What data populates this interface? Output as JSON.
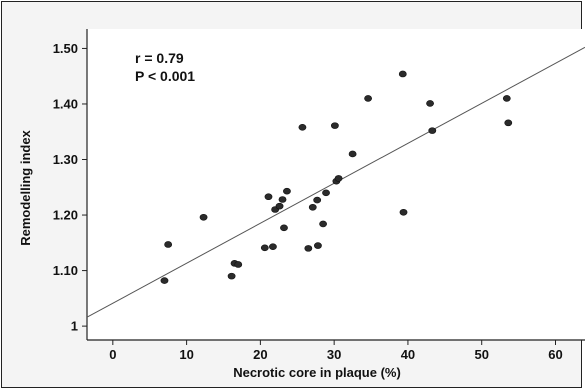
{
  "chart_data": {
    "type": "scatter",
    "xlabel": "Necrotic core in plaque (%)",
    "ylabel": "Remodelling index",
    "xlim": [
      -3.5,
      64
    ],
    "ylim": [
      0.975,
      1.535
    ],
    "x_ticks": [
      0,
      10,
      20,
      30,
      40,
      50,
      60
    ],
    "y_ticks": [
      1.0,
      1.1,
      1.2,
      1.3,
      1.4,
      1.5
    ],
    "y_tick_labels": [
      "1",
      "1.10",
      "1.20",
      "1.30",
      "1.40",
      "1.50"
    ],
    "annotations": [
      "r = 0.79",
      "P < 0.001"
    ],
    "grid": false,
    "points": [
      {
        "x": 7.0,
        "y": 1.082
      },
      {
        "x": 7.5,
        "y": 1.147
      },
      {
        "x": 12.3,
        "y": 1.196
      },
      {
        "x": 16.1,
        "y": 1.09
      },
      {
        "x": 16.5,
        "y": 1.113
      },
      {
        "x": 17.0,
        "y": 1.111
      },
      {
        "x": 20.6,
        "y": 1.141
      },
      {
        "x": 21.1,
        "y": 1.233
      },
      {
        "x": 21.7,
        "y": 1.143
      },
      {
        "x": 22.0,
        "y": 1.21
      },
      {
        "x": 22.6,
        "y": 1.216
      },
      {
        "x": 23.0,
        "y": 1.228
      },
      {
        "x": 23.2,
        "y": 1.177
      },
      {
        "x": 23.6,
        "y": 1.243
      },
      {
        "x": 25.7,
        "y": 1.358
      },
      {
        "x": 26.5,
        "y": 1.14
      },
      {
        "x": 27.1,
        "y": 1.214
      },
      {
        "x": 27.7,
        "y": 1.227
      },
      {
        "x": 27.8,
        "y": 1.145
      },
      {
        "x": 28.5,
        "y": 1.184
      },
      {
        "x": 28.9,
        "y": 1.24
      },
      {
        "x": 30.1,
        "y": 1.361
      },
      {
        "x": 30.3,
        "y": 1.261
      },
      {
        "x": 30.6,
        "y": 1.266
      },
      {
        "x": 32.5,
        "y": 1.31
      },
      {
        "x": 34.6,
        "y": 1.41
      },
      {
        "x": 39.3,
        "y": 1.454
      },
      {
        "x": 39.4,
        "y": 1.205
      },
      {
        "x": 43.0,
        "y": 1.401
      },
      {
        "x": 43.3,
        "y": 1.352
      },
      {
        "x": 53.4,
        "y": 1.41
      },
      {
        "x": 53.6,
        "y": 1.366
      }
    ],
    "regression_line": {
      "x": [
        -3.5,
        64
      ],
      "y": [
        1.016,
        1.502
      ]
    }
  }
}
